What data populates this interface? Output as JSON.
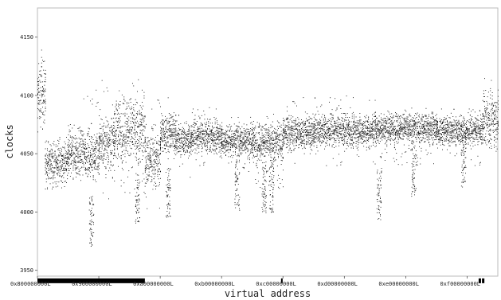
{
  "chart_data": {
    "type": "scatter",
    "title": "",
    "xlabel": "virtual address",
    "ylabel": "clocks",
    "xlim": [
      "0x800000000L",
      "0xf80000000L"
    ],
    "ylim": [
      3945,
      4175
    ],
    "grid": false,
    "legend": "none",
    "x_ticks": [
      {
        "value": "0x800000000L",
        "label": "0x800000000L"
      },
      {
        "value": "0x900000000L",
        "label": "0x900000000L"
      },
      {
        "value": "0xa00000000L",
        "label": "0xa00000000L"
      },
      {
        "value": "0xb00000000L",
        "label": "0xb00000000L"
      },
      {
        "value": "0xc00000000L",
        "label": "0xc00000000L"
      },
      {
        "value": "0xd00000000L",
        "label": "0xd00000000L"
      },
      {
        "value": "0xe00000000L",
        "label": "0xe00000000L"
      },
      {
        "value": "0xf00000000L",
        "label": "0xf00000000L"
      }
    ],
    "y_ticks": [
      {
        "value": 3950,
        "label": "3950"
      },
      {
        "value": 4000,
        "label": "4000"
      },
      {
        "value": 4050,
        "label": "4050"
      },
      {
        "value": 4100,
        "label": "4100"
      },
      {
        "value": 4150,
        "label": "4150"
      }
    ],
    "series": [
      {
        "marker_color": "#000000",
        "segments": [
          {
            "x_start": "0x800000000L",
            "x_end": "0x820000000L",
            "center": 4100,
            "spread": 22,
            "low": 4045,
            "high": 4140
          },
          {
            "x_start": "0x820000000L",
            "x_end": "0x880000000L",
            "center": 4042,
            "spread": 14,
            "low": 4020,
            "high": 4065
          },
          {
            "x_start": "0x880000000L",
            "x_end": "0x900000000L",
            "center": 4050,
            "spread": 18,
            "low": 4020,
            "high": 4105
          },
          {
            "x_start": "0x900000000L",
            "x_end": "0x940000000L",
            "center": 4060,
            "spread": 20,
            "low": 4000,
            "high": 4115
          },
          {
            "x_start": "0x940000000L",
            "x_end": "0x9c0000000L",
            "center": 4070,
            "spread": 25,
            "low": 4015,
            "high": 4115
          },
          {
            "x_start": "0x9c0000000L",
            "x_end": "0xa00000000L",
            "center": 4045,
            "spread": 18,
            "low": 4000,
            "high": 4105
          },
          {
            "x_start": "0xa00000000L",
            "x_end": "0xa40000000L",
            "center": 4068,
            "spread": 15,
            "low": 4035,
            "high": 4100
          },
          {
            "x_start": "0xa40000000L",
            "x_end": "0xa80000000L",
            "center": 4062,
            "spread": 12,
            "low": 4030,
            "high": 4085
          },
          {
            "x_start": "0xa80000000L",
            "x_end": "0xb00000000L",
            "center": 4065,
            "spread": 12,
            "low": 4040,
            "high": 4090
          },
          {
            "x_start": "0xb00000000L",
            "x_end": "0xb80000000L",
            "center": 4062,
            "spread": 12,
            "low": 4030,
            "high": 4085
          },
          {
            "x_start": "0xb80000000L",
            "x_end": "0xc00000000L",
            "center": 4060,
            "spread": 14,
            "low": 4020,
            "high": 4085
          },
          {
            "x_start": "0xc00000000L",
            "x_end": "0xc80000000L",
            "center": 4068,
            "spread": 12,
            "low": 4040,
            "high": 4100
          },
          {
            "x_start": "0xc80000000L",
            "x_end": "0xd80000000L",
            "center": 4070,
            "spread": 12,
            "low": 4040,
            "high": 4100
          },
          {
            "x_start": "0xd80000000L",
            "x_end": "0xe80000000L",
            "center": 4072,
            "spread": 11,
            "low": 4040,
            "high": 4090
          },
          {
            "x_start": "0xe80000000L",
            "x_end": "0xf40000000L",
            "center": 4070,
            "spread": 11,
            "low": 4040,
            "high": 4090
          },
          {
            "x_start": "0xf40000000L",
            "x_end": "0xf80000000L",
            "center": 4080,
            "spread": 20,
            "low": 4045,
            "high": 4115
          }
        ],
        "dips": [
          {
            "x": "0x8e0000000L",
            "low": 3970
          },
          {
            "x": "0x9a0000000L",
            "low": 3990
          },
          {
            "x": "0xa20000000L",
            "low": 3995
          },
          {
            "x": "0xb40000000L",
            "low": 4000
          },
          {
            "x": "0xbb0000000L",
            "low": 3998
          },
          {
            "x": "0xbd0000000L",
            "low": 4000
          },
          {
            "x": "0xd90000000L",
            "low": 3993
          },
          {
            "x": "0xe20000000L",
            "low": 4012
          },
          {
            "x": "0xef0000000L",
            "low": 4020
          }
        ]
      }
    ],
    "rug": {
      "y": 3941,
      "ranges": [
        [
          "0x800000000L",
          "0x802000000L"
        ],
        [
          "0x806000000L",
          "0x9c0000000L"
        ],
        [
          "0xbf8000000L",
          "0xbfa000000L"
        ],
        [
          "0xf30000000L",
          "0xf3a000000L"
        ],
        [
          "0xf3e000000L",
          "0xf48000000L"
        ]
      ]
    }
  }
}
